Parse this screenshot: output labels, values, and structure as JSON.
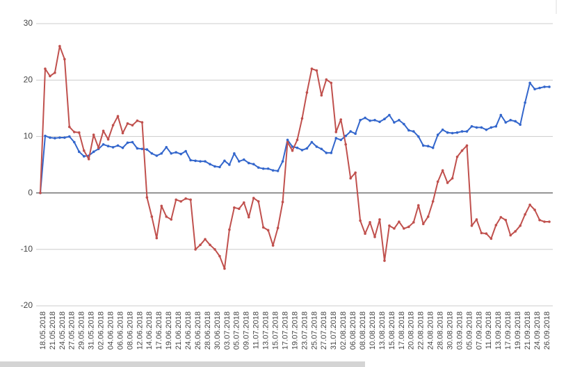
{
  "chart_data": {
    "type": "line",
    "categories": [
      null,
      "18.05.2018",
      null,
      "21.05.2018",
      null,
      "24.05.2018",
      null,
      "27.05.2018",
      null,
      "29.05.2018",
      null,
      "31.05.2018",
      null,
      "02.06.2018",
      null,
      "04.06.2018",
      null,
      "06.06.2018",
      null,
      "08.06.2018",
      null,
      "12.06.2018",
      null,
      "14.06.2018",
      null,
      "17.06.2018",
      null,
      "19.06.2018",
      null,
      "21.06.2018",
      null,
      "24.06.2018",
      null,
      "26.06.2018",
      null,
      "28.06.2018",
      null,
      "30.06.2018",
      null,
      "03.07.2018",
      null,
      "05.07.2018",
      null,
      "09.07.2018",
      null,
      "11.07.2018",
      null,
      "13.07.2018",
      null,
      "15.07.2018",
      null,
      "17.07.2018",
      null,
      "19.07.2018",
      null,
      "23.07.2018",
      null,
      "25.07.2018",
      null,
      "27.07.2018",
      null,
      "31.07.2018",
      null,
      "02.08.2018",
      null,
      "06.08.2018",
      null,
      "08.08.2018",
      null,
      "10.08.2018",
      null,
      "13.08.2018",
      null,
      "15.08.2018",
      null,
      "17.08.2018",
      null,
      "20.08.2018",
      null,
      "22.08.2018",
      null,
      "24.08.2018",
      null,
      "28.08.2018",
      null,
      "30.08.2018",
      null,
      "03.09.2018",
      null,
      "05.09.2018",
      null,
      "07.09.2018",
      null,
      "11.09.2018",
      null,
      "13.09.2018",
      null,
      "17.09.2018",
      null,
      "19.09.2018",
      null,
      "21.09.2018",
      null,
      "24.09.2018",
      null,
      "26.09.2018"
    ],
    "series": [
      {
        "color": "#3366cc",
        "values": [
          0,
          10.1,
          9.8,
          9.7,
          9.8,
          9.8,
          10,
          9,
          7.3,
          6.5,
          6.6,
          7.3,
          7.8,
          8.6,
          8.3,
          8.1,
          8.4,
          8,
          8.9,
          9,
          7.9,
          7.8,
          7.7,
          7,
          6.6,
          7,
          8.1,
          7,
          7.2,
          6.9,
          7.4,
          5.8,
          5.7,
          5.6,
          5.6,
          5.1,
          4.7,
          4.6,
          5.7,
          5,
          7,
          5.6,
          5.9,
          5.3,
          5.1,
          4.5,
          4.3,
          4.3,
          4,
          3.9,
          5.6,
          9.4,
          8.2,
          8,
          7.6,
          7.9,
          9,
          8.2,
          7.8,
          7.1,
          7.1,
          9.7,
          9.4,
          10.1,
          10.9,
          10.5,
          12.9,
          13.3,
          12.8,
          12.9,
          12.6,
          13.1,
          13.8,
          12.5,
          12.9,
          12.2,
          11.1,
          10.9,
          10,
          8.4,
          8.3,
          8,
          10.3,
          11.2,
          10.7,
          10.6,
          10.7,
          10.9,
          10.9,
          11.8,
          11.6,
          11.6,
          11.2,
          11.6,
          11.8,
          13.8,
          12.5,
          12.9,
          12.7,
          12.1,
          16,
          19.5,
          18.4,
          18.6,
          18.8,
          18.8
        ]
      },
      {
        "color": "#c0504d",
        "values": [
          0,
          22,
          20.7,
          21.3,
          26,
          23.7,
          11.7,
          10.8,
          10.7,
          7.5,
          6,
          10.3,
          8,
          11,
          9.5,
          12,
          13.6,
          10.6,
          12.3,
          12,
          12.8,
          12.5,
          -0.8,
          -4.2,
          -8,
          -2.3,
          -4.2,
          -4.7,
          -1.2,
          -1.5,
          -1,
          -1.2,
          -10,
          -9.2,
          -8.2,
          -9.2,
          -10,
          -11.2,
          -13.4,
          -6.5,
          -2.6,
          -2.8,
          -1.7,
          -4.3,
          -0.9,
          -1.5,
          -6.1,
          -6.6,
          -9.3,
          -6.2,
          -1.6,
          9,
          7.5,
          9.4,
          13.2,
          17.8,
          22,
          21.7,
          17.3,
          20.1,
          19.5,
          10.8,
          13,
          8.6,
          2.6,
          3.6,
          -4.9,
          -7.2,
          -5.2,
          -7.8,
          -4.7,
          -12,
          -5.8,
          -6.3,
          -5.1,
          -6.3,
          -6,
          -5.2,
          -2.2,
          -5.5,
          -4.2,
          -1.5,
          2,
          4,
          1.8,
          2.6,
          6.4,
          7.5,
          8.4,
          -5.8,
          -4.7,
          -7.1,
          -7.2,
          -8.1,
          -5.7,
          -4.3,
          -4.8,
          -7.5,
          -6.8,
          -5.8,
          -3.8,
          -2.1,
          -3,
          -4.8,
          -5.1,
          -5.1
        ]
      }
    ],
    "ylim": [
      -20,
      30
    ],
    "yticks": [
      -20,
      -10,
      0,
      10,
      20,
      30
    ],
    "grid": true
  }
}
